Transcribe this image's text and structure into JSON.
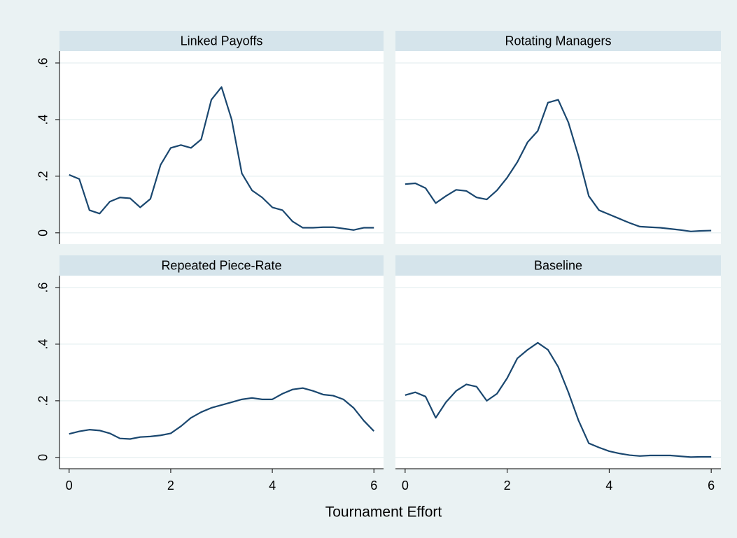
{
  "xlabel": "Tournament Effort",
  "xlim": [
    -0.19,
    6.19
  ],
  "xticks": [
    0,
    2,
    4,
    6
  ],
  "ylim": [
    -0.04,
    0.642
  ],
  "yticks": [
    0,
    {
      "value": 0.2,
      "label": ".2"
    },
    {
      "value": 0.4,
      "label": ".4"
    },
    {
      "value": 0.6,
      "label": ".6"
    }
  ],
  "grid": true,
  "chart_data": [
    {
      "type": "line",
      "title": "Linked Payoffs",
      "color": "#1a476f",
      "x": [
        0,
        0.2,
        0.4,
        0.6,
        0.8,
        1,
        1.2,
        1.4,
        1.6,
        1.8,
        2,
        2.2,
        2.4,
        2.6,
        2.8,
        3,
        3.2,
        3.4,
        3.6,
        3.8,
        4,
        4.2,
        4.4,
        4.6,
        4.8,
        5,
        5.2,
        5.4,
        5.6,
        5.8,
        6
      ],
      "values": [
        0.205,
        0.19,
        0.08,
        0.068,
        0.11,
        0.125,
        0.122,
        0.09,
        0.12,
        0.24,
        0.3,
        0.31,
        0.3,
        0.33,
        0.47,
        0.515,
        0.4,
        0.21,
        0.15,
        0.125,
        0.09,
        0.08,
        0.04,
        0.018,
        0.018,
        0.02,
        0.02,
        0.015,
        0.01,
        0.018,
        0.018
      ]
    },
    {
      "type": "line",
      "title": "Rotating Managers",
      "color": "#1a476f",
      "x": [
        0,
        0.2,
        0.4,
        0.6,
        0.8,
        1,
        1.2,
        1.4,
        1.6,
        1.8,
        2,
        2.2,
        2.4,
        2.6,
        2.8,
        3,
        3.2,
        3.4,
        3.6,
        3.8,
        4,
        4.2,
        4.4,
        4.6,
        4.8,
        5,
        5.2,
        5.4,
        5.6,
        5.8,
        6
      ],
      "values": [
        0.172,
        0.175,
        0.158,
        0.105,
        0.13,
        0.152,
        0.148,
        0.125,
        0.118,
        0.15,
        0.195,
        0.25,
        0.32,
        0.36,
        0.46,
        0.47,
        0.39,
        0.27,
        0.13,
        0.08,
        0.065,
        0.05,
        0.035,
        0.022,
        0.02,
        0.018,
        0.014,
        0.01,
        0.005,
        0.007,
        0.008
      ]
    },
    {
      "type": "line",
      "title": "Repeated Piece-Rate",
      "color": "#1a476f",
      "x": [
        0,
        0.2,
        0.4,
        0.6,
        0.8,
        1,
        1.2,
        1.4,
        1.6,
        1.8,
        2,
        2.2,
        2.4,
        2.6,
        2.8,
        3,
        3.2,
        3.4,
        3.6,
        3.8,
        4,
        4.2,
        4.4,
        4.6,
        4.8,
        5,
        5.2,
        5.4,
        5.6,
        5.8,
        6
      ],
      "values": [
        0.083,
        0.092,
        0.098,
        0.095,
        0.085,
        0.067,
        0.065,
        0.072,
        0.074,
        0.078,
        0.085,
        0.11,
        0.14,
        0.16,
        0.175,
        0.185,
        0.195,
        0.205,
        0.21,
        0.205,
        0.205,
        0.225,
        0.24,
        0.245,
        0.235,
        0.222,
        0.218,
        0.205,
        0.175,
        0.13,
        0.093
      ]
    },
    {
      "type": "line",
      "title": "Baseline",
      "color": "#1a476f",
      "x": [
        0,
        0.2,
        0.4,
        0.6,
        0.8,
        1,
        1.2,
        1.4,
        1.6,
        1.8,
        2,
        2.2,
        2.4,
        2.6,
        2.8,
        3,
        3.2,
        3.4,
        3.6,
        3.8,
        4,
        4.2,
        4.4,
        4.6,
        4.8,
        5,
        5.2,
        5.4,
        5.6,
        5.8,
        6
      ],
      "values": [
        0.22,
        0.23,
        0.215,
        0.14,
        0.195,
        0.235,
        0.258,
        0.25,
        0.2,
        0.225,
        0.28,
        0.35,
        0.38,
        0.405,
        0.38,
        0.32,
        0.23,
        0.13,
        0.05,
        0.035,
        0.022,
        0.014,
        0.008,
        0.005,
        0.007,
        0.007,
        0.007,
        0.004,
        0.001,
        0.002,
        0.002
      ]
    }
  ]
}
